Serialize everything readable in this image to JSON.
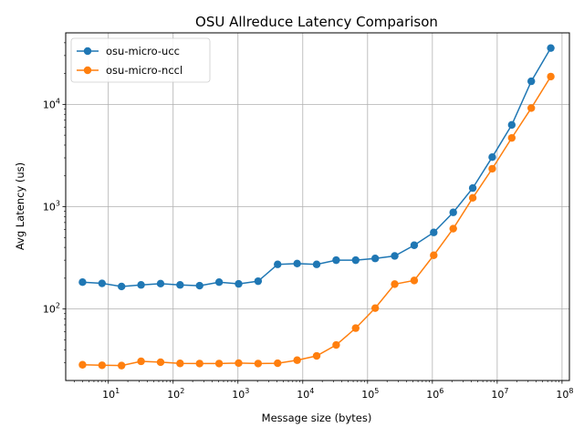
{
  "chart_data": {
    "type": "line",
    "title": "OSU Allreduce Latency Comparison",
    "xlabel": "Message size (bytes)",
    "ylabel": "Avg Latency (us)",
    "xscale": "log",
    "yscale": "log",
    "xlim": [
      2.2,
      130000000
    ],
    "ylim": [
      20,
      50000
    ],
    "grid": true,
    "legend_position": "top-left",
    "x_ticks": [
      {
        "value": 10,
        "base": "10",
        "exp": "1"
      },
      {
        "value": 100,
        "base": "10",
        "exp": "2"
      },
      {
        "value": 1000,
        "base": "10",
        "exp": "3"
      },
      {
        "value": 10000,
        "base": "10",
        "exp": "4"
      },
      {
        "value": 100000,
        "base": "10",
        "exp": "5"
      },
      {
        "value": 1000000,
        "base": "10",
        "exp": "6"
      },
      {
        "value": 10000000,
        "base": "10",
        "exp": "7"
      },
      {
        "value": 100000000,
        "base": "10",
        "exp": "8"
      }
    ],
    "y_ticks": [
      {
        "value": 100,
        "base": "10",
        "exp": "2"
      },
      {
        "value": 1000,
        "base": "10",
        "exp": "3"
      },
      {
        "value": 10000,
        "base": "10",
        "exp": "4"
      }
    ],
    "x": [
      4,
      8,
      16,
      32,
      64,
      128,
      256,
      512,
      1024,
      2048,
      4096,
      8192,
      16384,
      32768,
      65536,
      131072,
      262144,
      524288,
      1048576,
      2097152,
      4194304,
      8388608,
      16777216,
      33554432,
      67108864
    ],
    "series": [
      {
        "name": "osu-micro-ucc",
        "color": "#1f77b4",
        "values": [
          183,
          178,
          166,
          172,
          177,
          172,
          169,
          183,
          176,
          187,
          273,
          278,
          273,
          300,
          300,
          312,
          330,
          420,
          560,
          880,
          1520,
          3050,
          6300,
          16800,
          35500
        ]
      },
      {
        "name": "osu-micro-nccl",
        "color": "#ff7f0e",
        "values": [
          28.5,
          28.2,
          28.0,
          30.8,
          30.2,
          29.4,
          29.3,
          29.3,
          29.6,
          29.3,
          29.5,
          31.6,
          34.8,
          44.5,
          65,
          102,
          175,
          190,
          335,
          610,
          1220,
          2350,
          4700,
          9200,
          18700
        ]
      }
    ]
  }
}
